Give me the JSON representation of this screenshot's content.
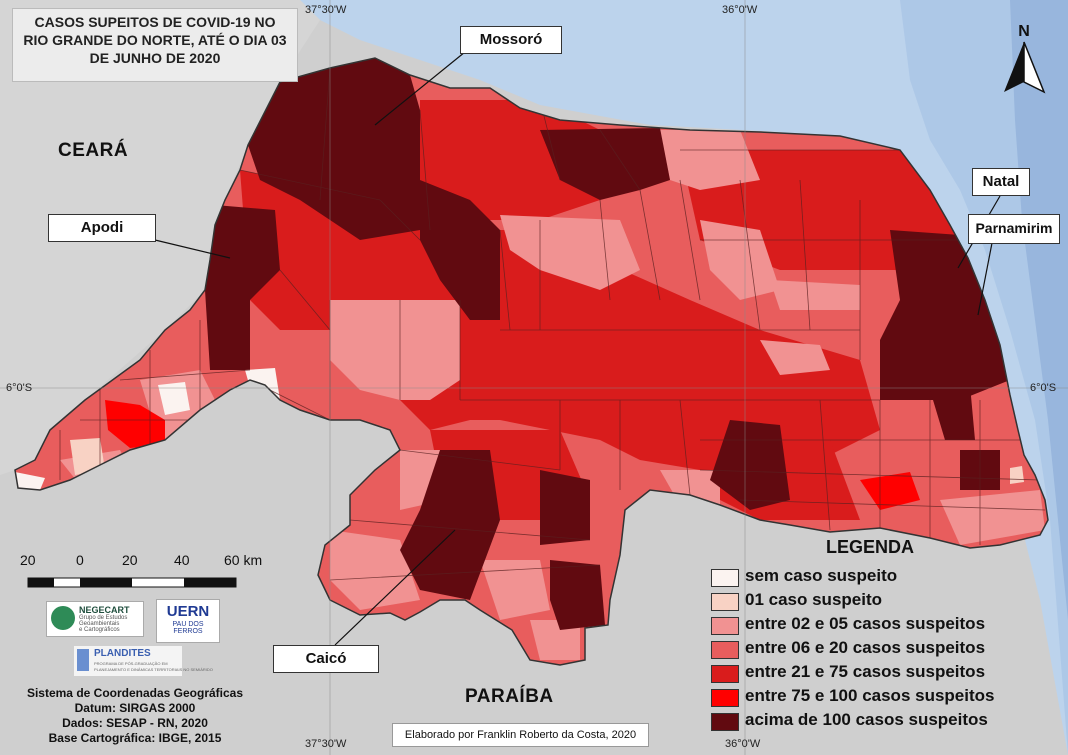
{
  "title": [
    "CASOS SUPEITOS DE COVID-19 NO",
    "RIO GRANDE DO NORTE, ATÉ O DIA 03",
    "DE JUNHO DE 2020"
  ],
  "north_arrow": "N",
  "coords": {
    "top_left": "37°30'W",
    "top_right": "36°0'W",
    "bottom_left": "37°30'W",
    "bottom_right": "36°0'W",
    "side_left": "6°0'S",
    "side_right": "6°0'S"
  },
  "states": {
    "ceara": "CEARÁ",
    "paraiba": "PARAÍBA"
  },
  "cities": {
    "mossoro": "Mossoró",
    "apodi": "Apodi",
    "natal": "Natal",
    "parnamirim": "Parnamirim",
    "caico": "Caicó"
  },
  "legend": {
    "title": "LEGENDA",
    "items": [
      {
        "label": "sem caso suspeito",
        "color": "#fbf3f0"
      },
      {
        "label": "01 caso suspeito",
        "color": "#f8d2c4"
      },
      {
        "label": "entre 02 e 05 casos suspeitos",
        "color": "#f19292"
      },
      {
        "label": "entre 06 e 20 casos suspeitos",
        "color": "#e85d5d"
      },
      {
        "label": "entre 21 e 75 casos suspeitos",
        "color": "#d91c1c"
      },
      {
        "label": "entre 75 e 100 casos suspeitos",
        "color": "#ff0000"
      },
      {
        "label": "acima de 100 casos suspeitos",
        "color": "#610a10"
      }
    ]
  },
  "scale": {
    "ticks": [
      "20",
      "0",
      "20",
      "40",
      "60 km"
    ]
  },
  "logos": {
    "negecart": [
      "NEGECART",
      "Grupo de Estudos",
      "Geoambientais",
      "e Cartográficos"
    ],
    "uern": [
      "UERN",
      "PAU DOS",
      "FERROS"
    ],
    "plandites": [
      "PLANDITES",
      "PROGRAMA DE PÓS-GRADUAÇÃO EM",
      "PLANEJAMENTO E DINÂMICAS TERRITORIAIS NO SEMIÁRIDO"
    ]
  },
  "info": [
    "Sistema de Coordenadas Geográficas",
    "Datum: SIRGAS 2000",
    "Dados: SESAP - RN, 2020",
    "Base Cartográfica: IBGE, 2015"
  ],
  "credit": "Elaborado por Franklin Roberto da Costa, 2020"
}
